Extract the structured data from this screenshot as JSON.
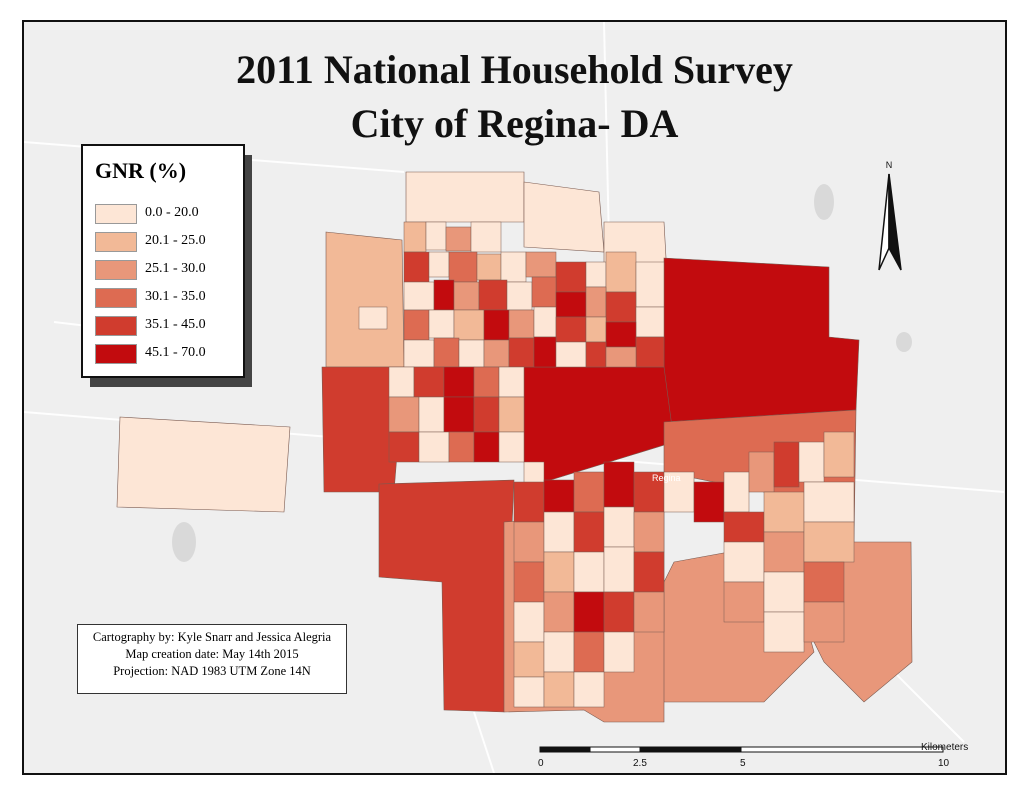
{
  "map": {
    "title_line1": "2011 National Household Survey",
    "title_line2": "City of Regina- DA",
    "place_label": "Regina",
    "legend": {
      "title": "GNR (%)",
      "classes": [
        {
          "label": "0.0 - 20.0",
          "color": "#fde6d6"
        },
        {
          "label": "20.1 - 25.0",
          "color": "#f2b997"
        },
        {
          "label": "25.1 - 30.0",
          "color": "#e8977a"
        },
        {
          "label": "30.1 - 35.0",
          "color": "#dd6b52"
        },
        {
          "label": "35.1 - 45.0",
          "color": "#d03c2e"
        },
        {
          "label": "45.1 - 70.0",
          "color": "#c20b0e"
        }
      ]
    },
    "credits": {
      "line1": "Cartography by: Kyle Snarr and Jessica Alegria",
      "line2": "Map creation date: May 14th 2015",
      "line3": "Projection: NAD 1983 UTM Zone 14N"
    },
    "north_label": "N",
    "scale": {
      "unit": "Kilometers",
      "ticks": [
        "0",
        "2.5",
        "5",
        "10"
      ]
    }
  }
}
